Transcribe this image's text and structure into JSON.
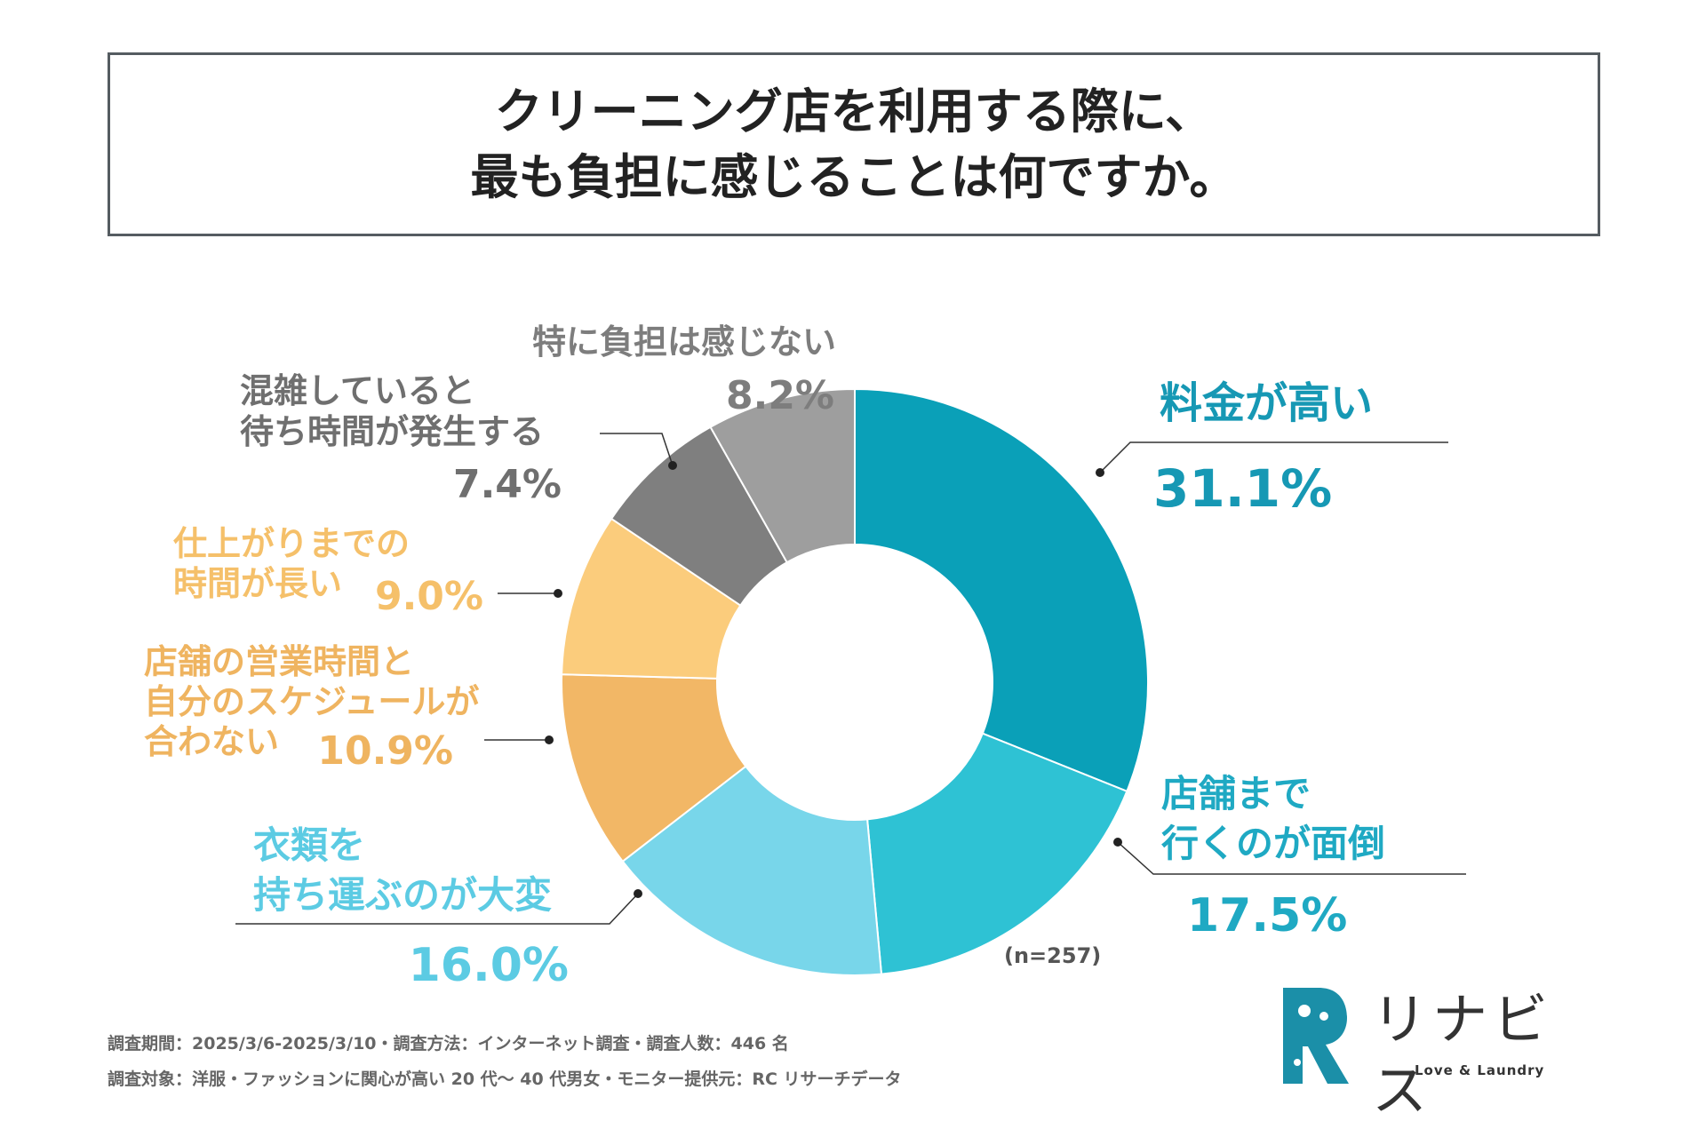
{
  "title": {
    "line1": "クリーニング店を利用する際に、",
    "line2": "最も負担に感じることは何ですか。"
  },
  "chart_data": {
    "type": "pie",
    "variant": "donut",
    "title": "クリーニング店を利用する際に、最も負担に感じることは何ですか。",
    "sample_size": "(n=257)",
    "categories": [
      "料金が高い",
      "店舗まで行くのが面倒",
      "衣類を持ち運ぶのが大変",
      "店舗の営業時間と自分のスケジュールが合わない",
      "仕上がりまでの時間が長い",
      "混雑していると待ち時間が発生する",
      "特に負担は感じない"
    ],
    "values": [
      31.1,
      17.5,
      16.0,
      10.9,
      9.0,
      7.4,
      8.2
    ],
    "colors": [
      "#0aa0b8",
      "#2ec2d4",
      "#78d6ea",
      "#f2b766",
      "#fbcc7c",
      "#7f7f7f",
      "#9e9e9e"
    ],
    "label_lines": [
      [
        "料金が高い"
      ],
      [
        "店舗まで",
        "行くのが面倒"
      ],
      [
        "衣類を",
        "持ち運ぶのが大変"
      ],
      [
        "店舗の営業時間と",
        "自分のスケジュールが",
        "合わない"
      ],
      [
        "仕上がりまでの",
        "時間が長い"
      ],
      [
        "混雑していると",
        "待ち時間が発生する"
      ],
      [
        "特に負担は感じない"
      ]
    ],
    "value_labels": [
      "31.1%",
      "17.5%",
      "16.0%",
      "10.9%",
      "9.0%",
      "7.4%",
      "8.2%"
    ],
    "label_colors": [
      "#1698b4",
      "#1fa9c3",
      "#5ccbe3",
      "#efb460",
      "#f5c06a",
      "#6f6f6f",
      "#7d7d7d"
    ]
  },
  "footer": {
    "line1": "調査期間：2025/3/6-2025/3/10・調査方法：インターネット調査・調査人数：446 名",
    "line2": "調査対象：洋服・ファッションに関心が高い 20 代〜 40 代男女・モニター提供元：RC リサーチデータ"
  },
  "logo": {
    "name": "リナビス",
    "tagline": "Love & Laundry",
    "colors": [
      "#1b8fa8",
      "#5ecfe0"
    ]
  }
}
